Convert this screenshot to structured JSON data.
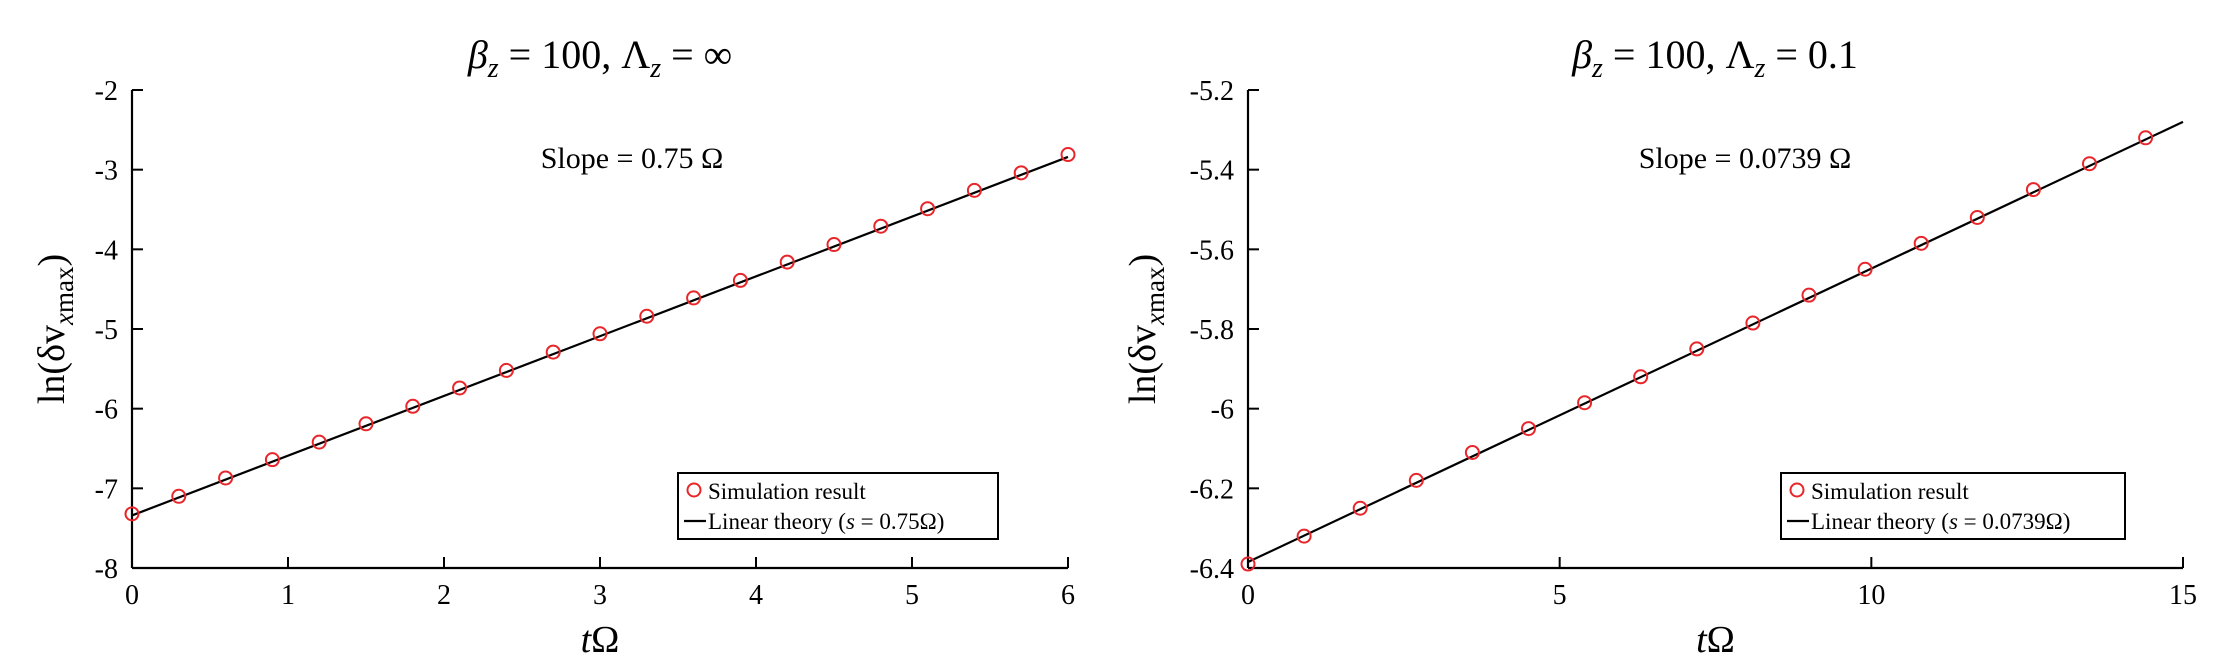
{
  "chart_data": [
    {
      "type": "scatter",
      "title": {
        "lhs1": "β",
        "sub1": "z",
        "mid": " = 100, Λ",
        "sub2": "z",
        "rhs": " = ∞"
      },
      "xlabel": {
        "var": "t",
        "sym": "Ω"
      },
      "ylabel": {
        "pre": "ln(δv",
        "sub": "x",
        "subrest": "max",
        "post": ")"
      },
      "xlim": [
        0,
        6
      ],
      "ylim": [
        -8,
        -2
      ],
      "xticks": [
        0,
        1,
        2,
        3,
        4,
        5,
        6
      ],
      "yticks": [
        -8,
        -7,
        -6,
        -5,
        -4,
        -3,
        -2
      ],
      "annotation": "Slope = 0.75 Ω",
      "legend": {
        "placement": "bottom-right",
        "sim_label": "Simulation result",
        "lin_pre": "Linear theory (",
        "lin_var": "s",
        "lin_val": " = 0.75Ω)"
      },
      "series": [
        {
          "name": "Simulation result",
          "marker": "circle",
          "color": "#e8262a",
          "x": [
            0,
            0.3,
            0.6,
            0.9,
            1.2,
            1.5,
            1.8,
            2.1,
            2.4,
            2.7,
            3.0,
            3.3,
            3.6,
            3.9,
            4.2,
            4.5,
            4.8,
            5.1,
            5.4,
            5.7,
            6.0
          ],
          "y": [
            -7.32,
            -7.1,
            -6.87,
            -6.64,
            -6.42,
            -6.19,
            -5.97,
            -5.74,
            -5.52,
            -5.29,
            -5.06,
            -4.84,
            -4.61,
            -4.39,
            -4.16,
            -3.94,
            -3.71,
            -3.49,
            -3.26,
            -3.04,
            -2.81
          ]
        },
        {
          "name": "Linear theory",
          "line": true,
          "color": "#000000",
          "x": [
            0,
            6
          ],
          "y": [
            -7.34,
            -2.84
          ]
        }
      ]
    },
    {
      "type": "scatter",
      "title": {
        "lhs1": "β",
        "sub1": "z",
        "mid": " = 100, Λ",
        "sub2": "z",
        "rhs": " = 0.1"
      },
      "xlabel": {
        "var": "t",
        "sym": "Ω"
      },
      "ylabel": {
        "pre": "ln(δv",
        "sub": "x",
        "subrest": "max",
        "post": ")"
      },
      "xlim": [
        0,
        15
      ],
      "ylim": [
        -6.4,
        -5.2
      ],
      "xticks": [
        0,
        5,
        10,
        15
      ],
      "yticks": [
        -6.4,
        -6.2,
        -6.0,
        -5.8,
        -5.6,
        -5.4,
        -5.2
      ],
      "ytick_labels": [
        "-6.4",
        "-6.2",
        "-6",
        "-5.8",
        "-5.6",
        "-5.4",
        "-5.2"
      ],
      "annotation": "Slope = 0.0739 Ω",
      "legend": {
        "placement": "bottom-right",
        "sim_label": "Simulation result",
        "lin_pre": "Linear theory (",
        "lin_var": "s",
        "lin_val": " = 0.0739Ω)"
      },
      "series": [
        {
          "name": "Simulation result",
          "marker": "circle",
          "color": "#e8262a",
          "x": [
            0,
            0.9,
            1.8,
            2.7,
            3.6,
            4.5,
            5.4,
            6.3,
            7.2,
            8.1,
            9.0,
            9.9,
            10.8,
            11.7,
            12.6,
            13.5,
            14.4
          ],
          "y": [
            -6.39,
            -6.32,
            -6.25,
            -6.18,
            -6.11,
            -6.05,
            -5.985,
            -5.92,
            -5.85,
            -5.785,
            -5.715,
            -5.65,
            -5.585,
            -5.52,
            -5.45,
            -5.385,
            -5.32
          ]
        },
        {
          "name": "Linear theory",
          "line": true,
          "color": "#000000",
          "x": [
            0,
            15
          ],
          "y": [
            -6.385,
            -5.28
          ]
        }
      ]
    }
  ]
}
